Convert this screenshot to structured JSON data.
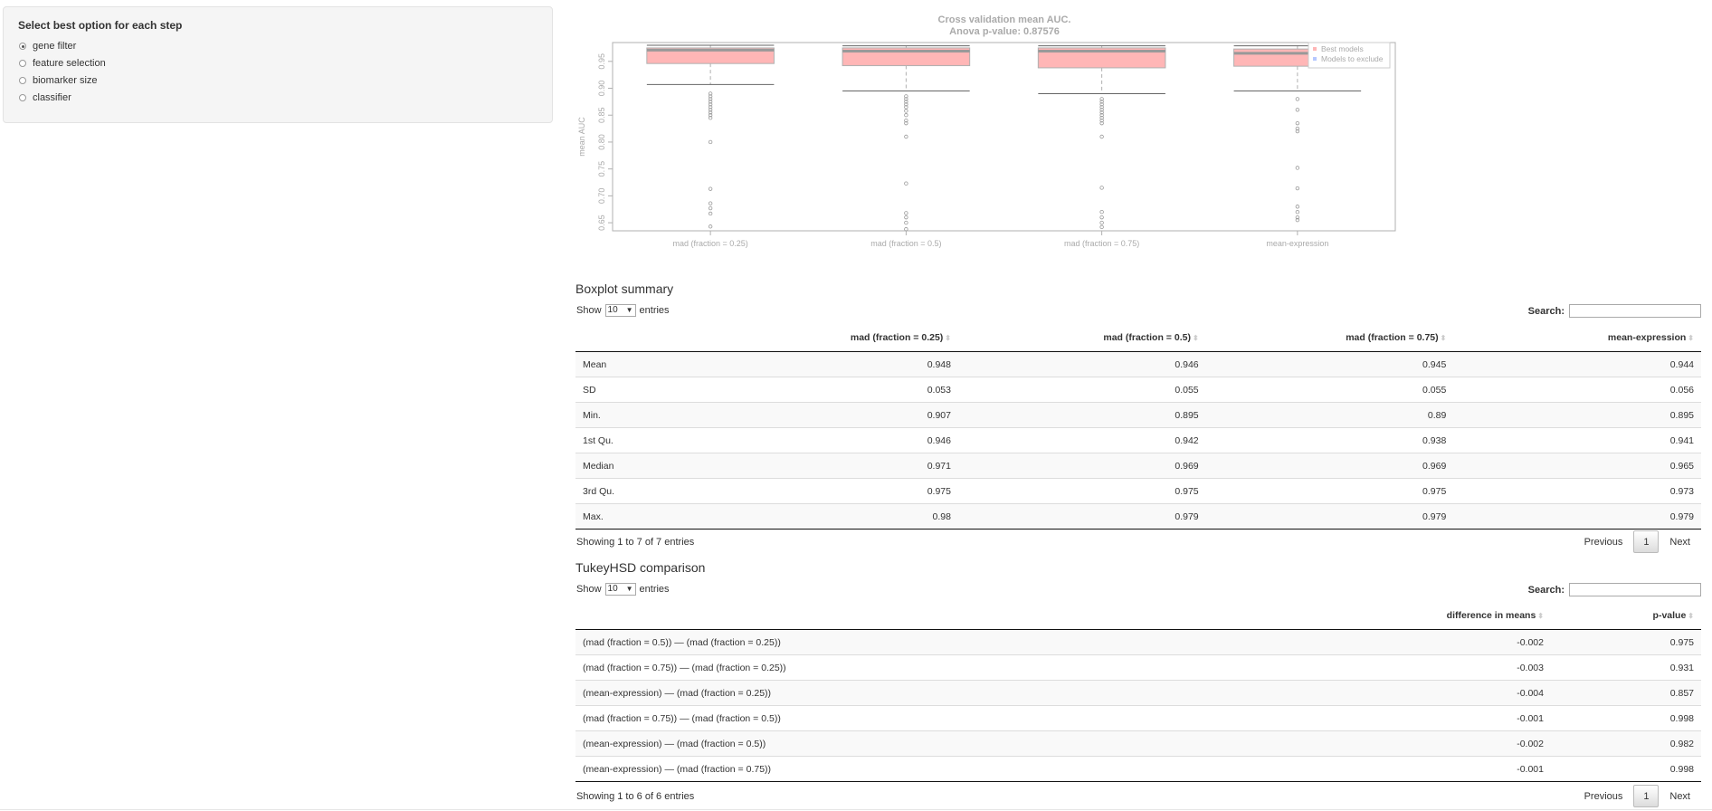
{
  "sidebar": {
    "heading": "Select best option for each step",
    "options": [
      {
        "label": "gene filter",
        "selected": true
      },
      {
        "label": "feature selection",
        "selected": false
      },
      {
        "label": "biomarker size",
        "selected": false
      },
      {
        "label": "classifier",
        "selected": false
      }
    ]
  },
  "chart_data": {
    "type": "boxplot",
    "title": "Cross validation mean AUC.",
    "subtitle": "Anova p-value: 0.87576",
    "ylabel": "mean AUC",
    "categories": [
      "mad (fraction = 0.25)",
      "mad (fraction = 0.5)",
      "mad (fraction = 0.75)",
      "mean-expression"
    ],
    "ylim": [
      0.635,
      0.985
    ],
    "yticks": [
      "0.65",
      "0.70",
      "0.75",
      "0.80",
      "0.85",
      "0.90",
      "0.95"
    ],
    "legend": [
      {
        "label": "Best models",
        "color": "#ffb6b6"
      },
      {
        "label": "Models to exclude",
        "color": "#b6c8ff"
      }
    ],
    "legend_position": "top-right",
    "boxes": [
      {
        "min": 0.907,
        "q1": 0.946,
        "median": 0.971,
        "q3": 0.975,
        "max": 0.98,
        "outliers": [
          0.89,
          0.885,
          0.88,
          0.875,
          0.87,
          0.865,
          0.86,
          0.855,
          0.85,
          0.845,
          0.8,
          0.713,
          0.686,
          0.677,
          0.667,
          0.643
        ]
      },
      {
        "min": 0.895,
        "q1": 0.942,
        "median": 0.969,
        "q3": 0.975,
        "max": 0.979,
        "outliers": [
          0.885,
          0.88,
          0.875,
          0.87,
          0.865,
          0.858,
          0.85,
          0.84,
          0.835,
          0.81,
          0.723,
          0.668,
          0.66,
          0.65,
          0.638
        ]
      },
      {
        "min": 0.89,
        "q1": 0.938,
        "median": 0.969,
        "q3": 0.975,
        "max": 0.979,
        "outliers": [
          0.88,
          0.875,
          0.87,
          0.865,
          0.86,
          0.855,
          0.85,
          0.845,
          0.84,
          0.835,
          0.81,
          0.715,
          0.67,
          0.66,
          0.65,
          0.642
        ]
      },
      {
        "min": 0.895,
        "q1": 0.941,
        "median": 0.965,
        "q3": 0.973,
        "max": 0.979,
        "outliers": [
          0.88,
          0.86,
          0.835,
          0.825,
          0.82,
          0.752,
          0.714,
          0.68,
          0.67,
          0.66,
          0.655
        ]
      }
    ],
    "box_fill": "#ffb6b6",
    "median_color": "#999999"
  },
  "boxplot_summary": {
    "title": "Boxplot summary",
    "show_label": "Show",
    "entries_value": "10",
    "entries_label": "entries",
    "search_label": "Search:",
    "columns": [
      "",
      "mad (fraction = 0.25)",
      "mad (fraction = 0.5)",
      "mad (fraction = 0.75)",
      "mean-expression"
    ],
    "rows": [
      [
        "Mean",
        "0.948",
        "0.946",
        "0.945",
        "0.944"
      ],
      [
        "SD",
        "0.053",
        "0.055",
        "0.055",
        "0.056"
      ],
      [
        "Min.",
        "0.907",
        "0.895",
        "0.89",
        "0.895"
      ],
      [
        "1st Qu.",
        "0.946",
        "0.942",
        "0.938",
        "0.941"
      ],
      [
        "Median",
        "0.971",
        "0.969",
        "0.969",
        "0.965"
      ],
      [
        "3rd Qu.",
        "0.975",
        "0.975",
        "0.975",
        "0.973"
      ],
      [
        "Max.",
        "0.98",
        "0.979",
        "0.979",
        "0.979"
      ]
    ],
    "info": "Showing 1 to 7 of 7 entries",
    "pager": {
      "previous": "Previous",
      "page": "1",
      "next": "Next"
    }
  },
  "tukey": {
    "title": "TukeyHSD comparison",
    "show_label": "Show",
    "entries_value": "10",
    "entries_label": "entries",
    "search_label": "Search:",
    "columns": [
      "",
      "difference in means",
      "p-value"
    ],
    "rows": [
      [
        "(mad (fraction = 0.5)) — (mad (fraction = 0.25))",
        "-0.002",
        "0.975"
      ],
      [
        "(mad (fraction = 0.75)) — (mad (fraction = 0.25))",
        "-0.003",
        "0.931"
      ],
      [
        "(mean-expression) — (mad (fraction = 0.25))",
        "-0.004",
        "0.857"
      ],
      [
        "(mad (fraction = 0.75)) — (mad (fraction = 0.5))",
        "-0.001",
        "0.998"
      ],
      [
        "(mean-expression) — (mad (fraction = 0.5))",
        "-0.002",
        "0.982"
      ],
      [
        "(mean-expression) — (mad (fraction = 0.75))",
        "-0.001",
        "0.998"
      ]
    ],
    "info": "Showing 1 to 6 of 6 entries",
    "pager": {
      "previous": "Previous",
      "page": "1",
      "next": "Next"
    }
  }
}
